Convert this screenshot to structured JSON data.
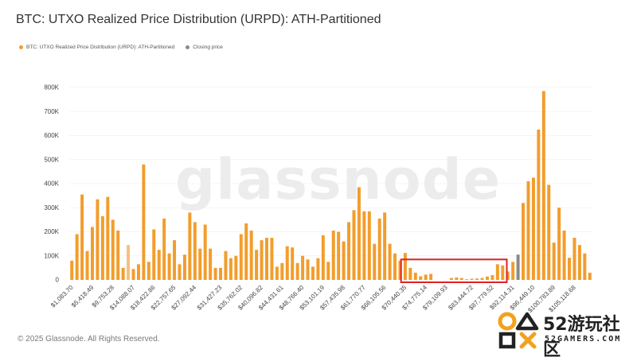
{
  "title": "BTC: UTXO Realized Price Distribution (URPD): ATH-Partitioned",
  "legend": {
    "series_label": "BTC: UTXO Realized Price Distribution (URPD): ATH-Partitioned",
    "closing_label": "Closing price"
  },
  "watermark": "glassnode",
  "footer": "© 2025 Glassnode. All Rights Reserved.",
  "logo": {
    "main": "52游玩社区",
    "sub": "52GAMERS.COM"
  },
  "colors": {
    "bar": "#f29d2c",
    "bar_faded": "#f6c080",
    "closing": "#8a8a8a",
    "highlight_box": "#e02020",
    "grid": "#ececec",
    "axis_text": "#444444"
  },
  "chart_data": {
    "type": "bar",
    "ylim": [
      0,
      800000
    ],
    "yticks": [
      0,
      100000,
      200000,
      300000,
      400000,
      500000,
      600000,
      700000,
      800000
    ],
    "ytick_labels": [
      "0",
      "100K",
      "200K",
      "300K",
      "400K",
      "500K",
      "600K",
      "700K",
      "800K"
    ],
    "xtick_labels": [
      "$1,083.70",
      "$5,418.49",
      "$9,753.28",
      "$14,088.07",
      "$18,422.86",
      "$22,757.65",
      "$27,092.44",
      "$31,427.23",
      "$35,762.02",
      "$40,096.82",
      "$44,431.61",
      "$48,766.40",
      "$53,101.19",
      "$57,435.98",
      "$61,770.77",
      "$66,105.56",
      "$70,440.35",
      "$74,775.14",
      "$79,109.93",
      "$83,444.72",
      "$87,779.52",
      "$92,114.31",
      "$96,449.10",
      "$100,783.89",
      "$105,118.68"
    ],
    "values": [
      80000,
      190000,
      355000,
      120000,
      220000,
      335000,
      265000,
      345000,
      250000,
      205000,
      50000,
      145000,
      45000,
      65000,
      480000,
      75000,
      210000,
      125000,
      255000,
      110000,
      165000,
      65000,
      105000,
      280000,
      240000,
      130000,
      230000,
      130000,
      50000,
      50000,
      120000,
      90000,
      100000,
      190000,
      235000,
      205000,
      125000,
      165000,
      175000,
      175000,
      55000,
      70000,
      140000,
      135000,
      70000,
      100000,
      85000,
      55000,
      90000,
      185000,
      75000,
      205000,
      200000,
      160000,
      240000,
      290000,
      385000,
      285000,
      285000,
      150000,
      255000,
      280000,
      150000,
      110000,
      80000,
      112000,
      50000,
      30000,
      15000,
      22000,
      25000,
      0,
      0,
      0,
      8000,
      10000,
      8000,
      3000,
      5000,
      6000,
      8000,
      14000,
      20000,
      65000,
      60000,
      35000,
      75000,
      105000,
      320000,
      410000,
      425000,
      625000,
      785000,
      395000,
      155000,
      300000,
      205000,
      92000,
      175000,
      145000,
      110000,
      30000
    ],
    "faded_indices": [
      11
    ],
    "closing_index": 87,
    "highlight_range": [
      65,
      84
    ],
    "legend_position": "top-left",
    "grid": true
  }
}
